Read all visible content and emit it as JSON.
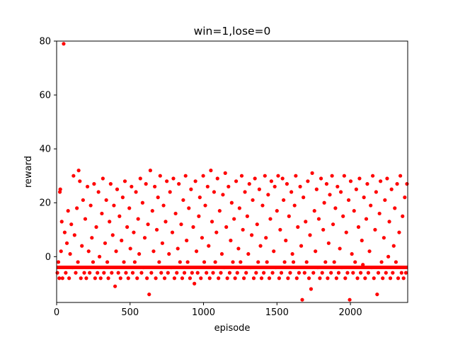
{
  "chart_data": {
    "type": "scatter",
    "title": "win=1,lose=0",
    "xlabel": "episode",
    "ylabel": "reward",
    "xlim": [
      0,
      2390
    ],
    "ylim": [
      -17,
      80
    ],
    "xticks": [
      0,
      500,
      1000,
      1500,
      2000
    ],
    "yticks": [
      0,
      20,
      40,
      60,
      80
    ],
    "grid": false,
    "legend": "none",
    "marker_color": "#ff0000",
    "series": [
      {
        "points": [
          [
            5,
            -6
          ],
          [
            12,
            -2
          ],
          [
            18,
            -8
          ],
          [
            22,
            24
          ],
          [
            25,
            25
          ],
          [
            30,
            2
          ],
          [
            35,
            13
          ],
          [
            40,
            -8
          ],
          [
            48,
            79
          ],
          [
            55,
            9
          ],
          [
            62,
            -6
          ],
          [
            70,
            5
          ],
          [
            78,
            17
          ],
          [
            85,
            -8
          ],
          [
            92,
            1
          ],
          [
            100,
            12
          ],
          [
            108,
            -4
          ],
          [
            115,
            30
          ],
          [
            122,
            8
          ],
          [
            130,
            -6
          ],
          [
            138,
            18
          ],
          [
            145,
            -2
          ],
          [
            150,
            32
          ],
          [
            158,
            28
          ],
          [
            165,
            -8
          ],
          [
            172,
            4
          ],
          [
            180,
            21
          ],
          [
            188,
            -6
          ],
          [
            195,
            14
          ],
          [
            202,
            -8
          ],
          [
            210,
            26
          ],
          [
            218,
            2
          ],
          [
            225,
            -6
          ],
          [
            232,
            19
          ],
          [
            240,
            7
          ],
          [
            248,
            -2
          ],
          [
            255,
            27
          ],
          [
            262,
            -8
          ],
          [
            270,
            11
          ],
          [
            278,
            -6
          ],
          [
            285,
            24
          ],
          [
            292,
            0
          ],
          [
            300,
            -8
          ],
          [
            308,
            16
          ],
          [
            315,
            29
          ],
          [
            322,
            -6
          ],
          [
            330,
            5
          ],
          [
            338,
            21
          ],
          [
            345,
            -2
          ],
          [
            352,
            -8
          ],
          [
            360,
            13
          ],
          [
            368,
            27
          ],
          [
            375,
            -6
          ],
          [
            382,
            8
          ],
          [
            390,
            19
          ],
          [
            398,
            -11
          ],
          [
            405,
            2
          ],
          [
            412,
            25
          ],
          [
            420,
            -6
          ],
          [
            428,
            15
          ],
          [
            435,
            -8
          ],
          [
            442,
            6
          ],
          [
            450,
            22
          ],
          [
            458,
            -2
          ],
          [
            465,
            28
          ],
          [
            472,
            -6
          ],
          [
            480,
            11
          ],
          [
            488,
            -8
          ],
          [
            495,
            18
          ],
          [
            502,
            3
          ],
          [
            510,
            26
          ],
          [
            518,
            -6
          ],
          [
            525,
            9
          ],
          [
            532,
            -2
          ],
          [
            540,
            24
          ],
          [
            548,
            -8
          ],
          [
            555,
            14
          ],
          [
            562,
            1
          ],
          [
            570,
            29
          ],
          [
            578,
            -6
          ],
          [
            585,
            20
          ],
          [
            592,
            -4
          ],
          [
            600,
            7
          ],
          [
            608,
            27
          ],
          [
            615,
            -8
          ],
          [
            622,
            12
          ],
          [
            630,
            -14
          ],
          [
            638,
            32
          ],
          [
            645,
            -6
          ],
          [
            652,
            17
          ],
          [
            660,
            2
          ],
          [
            668,
            26
          ],
          [
            675,
            -8
          ],
          [
            682,
            10
          ],
          [
            690,
            22
          ],
          [
            698,
            -2
          ],
          [
            705,
            30
          ],
          [
            712,
            -6
          ],
          [
            720,
            5
          ],
          [
            728,
            19
          ],
          [
            735,
            -8
          ],
          [
            742,
            13
          ],
          [
            750,
            28
          ],
          [
            758,
            -6
          ],
          [
            765,
            1
          ],
          [
            772,
            24
          ],
          [
            780,
            -4
          ],
          [
            788,
            9
          ],
          [
            795,
            29
          ],
          [
            802,
            -8
          ],
          [
            810,
            16
          ],
          [
            818,
            -6
          ],
          [
            825,
            3
          ],
          [
            832,
            27
          ],
          [
            840,
            -2
          ],
          [
            848,
            12
          ],
          [
            855,
            -8
          ],
          [
            862,
            21
          ],
          [
            870,
            -6
          ],
          [
            878,
            30
          ],
          [
            885,
            6
          ],
          [
            892,
            -2
          ],
          [
            900,
            18
          ],
          [
            908,
            -8
          ],
          [
            915,
            25
          ],
          [
            922,
            -6
          ],
          [
            930,
            11
          ],
          [
            938,
            -10
          ],
          [
            945,
            28
          ],
          [
            952,
            2
          ],
          [
            960,
            -6
          ],
          [
            968,
            15
          ],
          [
            975,
            22
          ],
          [
            982,
            -8
          ],
          [
            990,
            7
          ],
          [
            998,
            30
          ],
          [
            1005,
            -2
          ],
          [
            1012,
            19
          ],
          [
            1020,
            -6
          ],
          [
            1028,
            26
          ],
          [
            1035,
            4
          ],
          [
            1042,
            -8
          ],
          [
            1050,
            32
          ],
          [
            1058,
            13
          ],
          [
            1065,
            -6
          ],
          [
            1072,
            24
          ],
          [
            1080,
            -2
          ],
          [
            1088,
            9
          ],
          [
            1095,
            29
          ],
          [
            1102,
            -8
          ],
          [
            1110,
            17
          ],
          [
            1118,
            -6
          ],
          [
            1125,
            1
          ],
          [
            1132,
            23
          ],
          [
            1140,
            -4
          ],
          [
            1148,
            31
          ],
          [
            1155,
            11
          ],
          [
            1162,
            -8
          ],
          [
            1170,
            26
          ],
          [
            1178,
            -6
          ],
          [
            1185,
            6
          ],
          [
            1192,
            20
          ],
          [
            1200,
            -2
          ],
          [
            1208,
            14
          ],
          [
            1215,
            -8
          ],
          [
            1222,
            28
          ],
          [
            1230,
            -6
          ],
          [
            1238,
            3
          ],
          [
            1245,
            18
          ],
          [
            1252,
            -2
          ],
          [
            1260,
            30
          ],
          [
            1268,
            10
          ],
          [
            1275,
            -8
          ],
          [
            1282,
            24
          ],
          [
            1290,
            -6
          ],
          [
            1298,
            15
          ],
          [
            1305,
            1
          ],
          [
            1312,
            27
          ],
          [
            1320,
            -4
          ],
          [
            1328,
            8
          ],
          [
            1335,
            21
          ],
          [
            1342,
            -8
          ],
          [
            1350,
            29
          ],
          [
            1358,
            -6
          ],
          [
            1365,
            12
          ],
          [
            1372,
            -2
          ],
          [
            1380,
            25
          ],
          [
            1388,
            4
          ],
          [
            1395,
            -8
          ],
          [
            1402,
            19
          ],
          [
            1410,
            -6
          ],
          [
            1418,
            30
          ],
          [
            1425,
            7
          ],
          [
            1432,
            -2
          ],
          [
            1440,
            23
          ],
          [
            1448,
            -8
          ],
          [
            1455,
            14
          ],
          [
            1462,
            28
          ],
          [
            1470,
            -6
          ],
          [
            1478,
            2
          ],
          [
            1485,
            26
          ],
          [
            1492,
            -4
          ],
          [
            1500,
            17
          ],
          [
            1508,
            30
          ],
          [
            1515,
            -8
          ],
          [
            1522,
            10
          ],
          [
            1530,
            -6
          ],
          [
            1538,
            29
          ],
          [
            1545,
            21
          ],
          [
            1552,
            -2
          ],
          [
            1560,
            6
          ],
          [
            1568,
            27
          ],
          [
            1575,
            -8
          ],
          [
            1582,
            15
          ],
          [
            1590,
            -6
          ],
          [
            1598,
            24
          ],
          [
            1605,
            1
          ],
          [
            1612,
            -2
          ],
          [
            1620,
            19
          ],
          [
            1628,
            30
          ],
          [
            1635,
            -8
          ],
          [
            1642,
            11
          ],
          [
            1650,
            -6
          ],
          [
            1658,
            26
          ],
          [
            1665,
            4
          ],
          [
            1672,
            -16
          ],
          [
            1680,
            22
          ],
          [
            1688,
            -6
          ],
          [
            1695,
            13
          ],
          [
            1702,
            -2
          ],
          [
            1710,
            28
          ],
          [
            1718,
            -8
          ],
          [
            1725,
            8
          ],
          [
            1732,
            -12
          ],
          [
            1740,
            31
          ],
          [
            1748,
            -6
          ],
          [
            1755,
            17
          ],
          [
            1762,
            2
          ],
          [
            1770,
            25
          ],
          [
            1778,
            -4
          ],
          [
            1785,
            14
          ],
          [
            1792,
            -8
          ],
          [
            1800,
            29
          ],
          [
            1808,
            -6
          ],
          [
            1815,
            10
          ],
          [
            1822,
            20
          ],
          [
            1830,
            -2
          ],
          [
            1838,
            27
          ],
          [
            1845,
            -8
          ],
          [
            1852,
            5
          ],
          [
            1860,
            23
          ],
          [
            1868,
            -6
          ],
          [
            1875,
            30
          ],
          [
            1882,
            12
          ],
          [
            1890,
            -2
          ],
          [
            1898,
            18
          ],
          [
            1905,
            -8
          ],
          [
            1912,
            26
          ],
          [
            1920,
            -6
          ],
          [
            1928,
            3
          ],
          [
            1935,
            24
          ],
          [
            1942,
            -4
          ],
          [
            1950,
            15
          ],
          [
            1958,
            30
          ],
          [
            1965,
            -8
          ],
          [
            1972,
            9
          ],
          [
            1980,
            -6
          ],
          [
            1988,
            21
          ],
          [
            1995,
            -16
          ],
          [
            2002,
            28
          ],
          [
            2010,
            1
          ],
          [
            2018,
            -6
          ],
          [
            2025,
            17
          ],
          [
            2032,
            -2
          ],
          [
            2040,
            25
          ],
          [
            2048,
            -8
          ],
          [
            2055,
            11
          ],
          [
            2062,
            29
          ],
          [
            2070,
            -6
          ],
          [
            2078,
            6
          ],
          [
            2085,
            -3
          ],
          [
            2092,
            22
          ],
          [
            2100,
            -8
          ],
          [
            2108,
            14
          ],
          [
            2115,
            27
          ],
          [
            2122,
            -6
          ],
          [
            2130,
            2
          ],
          [
            2138,
            19
          ],
          [
            2145,
            -4
          ],
          [
            2152,
            30
          ],
          [
            2160,
            -8
          ],
          [
            2168,
            10
          ],
          [
            2175,
            24
          ],
          [
            2182,
            -14
          ],
          [
            2190,
            -6
          ],
          [
            2198,
            16
          ],
          [
            2205,
            28
          ],
          [
            2212,
            -2
          ],
          [
            2220,
            -8
          ],
          [
            2228,
            7
          ],
          [
            2235,
            21
          ],
          [
            2242,
            -6
          ],
          [
            2250,
            29
          ],
          [
            2258,
            0
          ],
          [
            2265,
            13
          ],
          [
            2272,
            -8
          ],
          [
            2280,
            25
          ],
          [
            2288,
            -6
          ],
          [
            2295,
            4
          ],
          [
            2302,
            18
          ],
          [
            2310,
            -2
          ],
          [
            2318,
            27
          ],
          [
            2325,
            -8
          ],
          [
            2332,
            9
          ],
          [
            2340,
            30
          ],
          [
            2348,
            -6
          ],
          [
            2355,
            15
          ],
          [
            2362,
            -8
          ],
          [
            2370,
            22
          ],
          [
            2378,
            -6
          ],
          [
            2385,
            27
          ]
        ]
      }
    ]
  }
}
